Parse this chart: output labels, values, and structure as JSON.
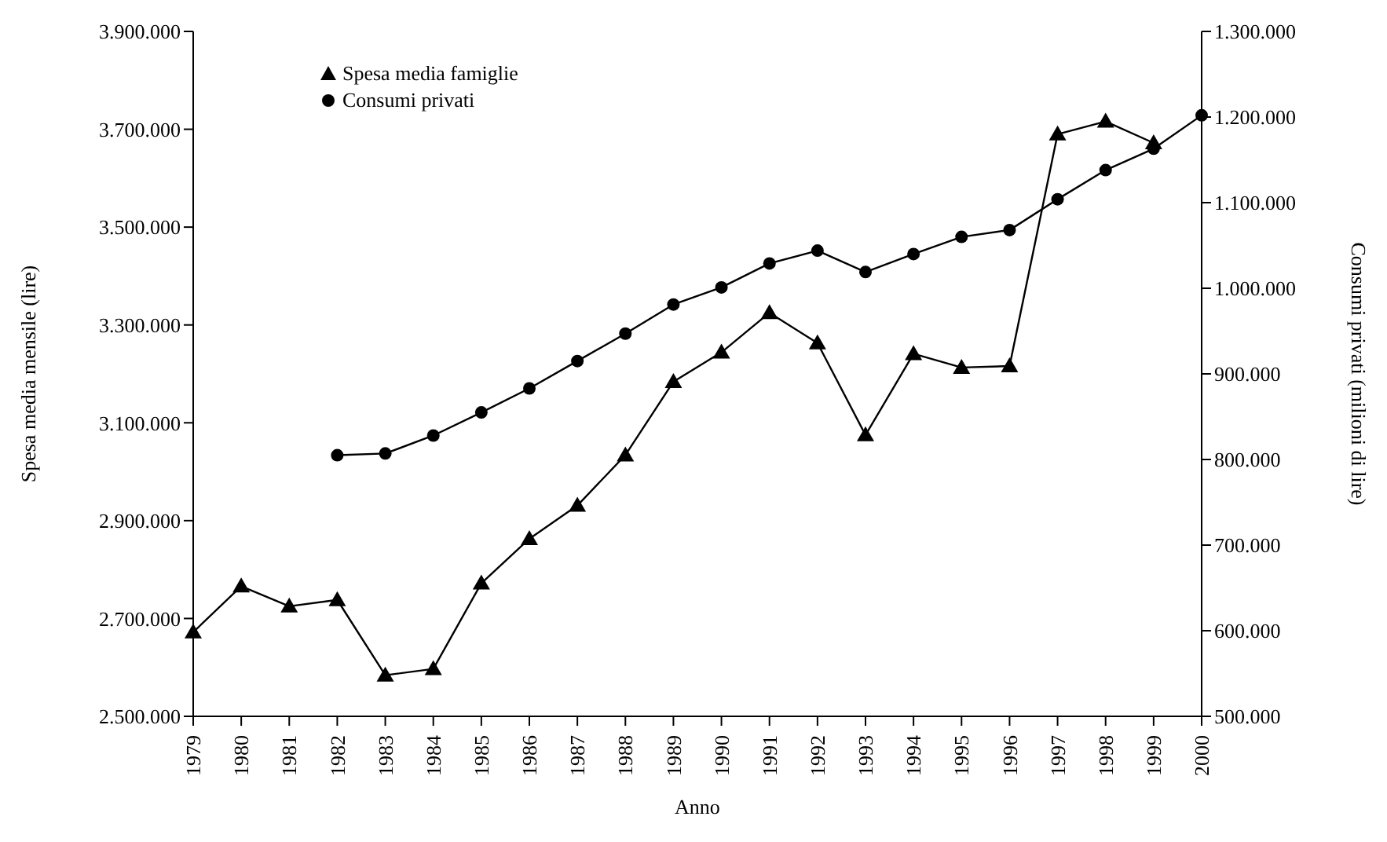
{
  "chart_data": {
    "type": "line",
    "xlabel": "Anno",
    "ylabel": "Spesa media mensile (lire)",
    "y2label": "Consumi privati (milioni di lire)",
    "categories": [
      "1979",
      "1980",
      "1981",
      "1982",
      "1983",
      "1984",
      "1985",
      "1986",
      "1987",
      "1988",
      "1989",
      "1990",
      "1991",
      "1992",
      "1993",
      "1994",
      "1995",
      "1996",
      "1997",
      "1998",
      "1999",
      "2000"
    ],
    "series": [
      {
        "name": "Spesa media famiglie",
        "color": "#000000",
        "marker": "triangle",
        "values": [
          2672000,
          2766000,
          2725000,
          2738000,
          2584000,
          2597000,
          2772000,
          2863000,
          2931000,
          3034000,
          3184000,
          3244000,
          3325000,
          3263000,
          3075000,
          3241000,
          3213000,
          3216000,
          3690000,
          3716000,
          3672000,
          null
        ]
      },
      {
        "name": "Consumi privati",
        "color": "#000000",
        "marker": "circle",
        "axis": "y2",
        "values": [
          null,
          null,
          null,
          805000,
          807000,
          828000,
          855000,
          883000,
          915000,
          947000,
          981000,
          1001000,
          1029000,
          1044000,
          1019000,
          1040000,
          1060000,
          1068000,
          1104000,
          1138000,
          1163000,
          1202000
        ]
      }
    ],
    "ylim": [
      2500000,
      3900000
    ],
    "yticks": [
      {
        "value": 2500000,
        "label": "2.500.000"
      },
      {
        "value": 2700000,
        "label": "2.700.000"
      },
      {
        "value": 2900000,
        "label": "2.900.000"
      },
      {
        "value": 3100000,
        "label": "3.100.000"
      },
      {
        "value": 3300000,
        "label": "3.300.000"
      },
      {
        "value": 3500000,
        "label": "3.500.000"
      },
      {
        "value": 3700000,
        "label": "3.700.000"
      },
      {
        "value": 3900000,
        "label": "3.900.000"
      }
    ],
    "y2lim": [
      500000,
      1300000
    ],
    "y2ticks": [
      {
        "value": 500000,
        "label": "500.000"
      },
      {
        "value": 600000,
        "label": "600.000"
      },
      {
        "value": 700000,
        "label": "700.000"
      },
      {
        "value": 800000,
        "label": "800.000"
      },
      {
        "value": 900000,
        "label": "900.000"
      },
      {
        "value": 1000000,
        "label": "1.000.000"
      },
      {
        "value": 1100000,
        "label": "1.100.000"
      },
      {
        "value": 1200000,
        "label": "1.200.000"
      },
      {
        "value": 1300000,
        "label": "1.300.000"
      }
    ],
    "grid": false,
    "legend": "top left",
    "line_style": "solid"
  }
}
